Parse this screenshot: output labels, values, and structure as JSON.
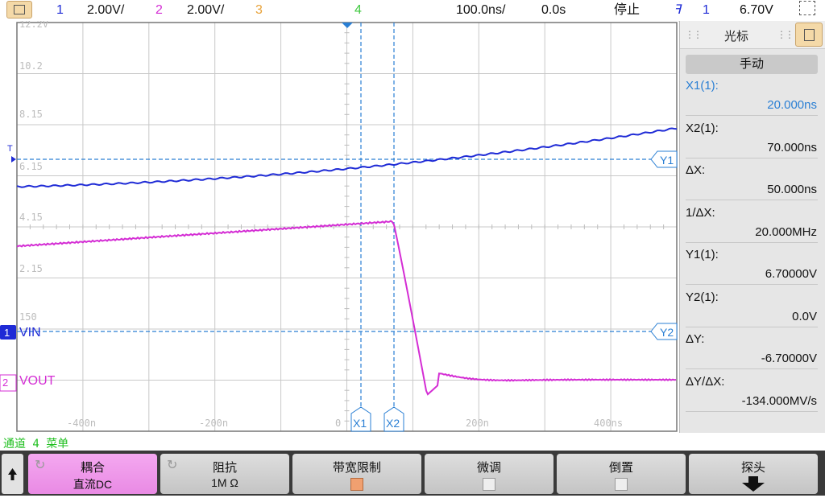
{
  "topbar": {
    "ch1_num": "1",
    "ch1_scale": "2.00V/",
    "ch2_num": "2",
    "ch2_scale": "2.00V/",
    "ch3_num": "3",
    "ch4_num": "4",
    "timebase": "100.0ns/",
    "delay": "0.0s",
    "run_state": "停止",
    "trigger_channel": "1",
    "trigger_level": "6.70V"
  },
  "colors": {
    "ch1": "#1f2bd6",
    "ch2": "#d42dd4",
    "ch3": "#e8a23a",
    "ch4": "#3ec83e",
    "cursor": "#2a7fd4",
    "grid": "#c8c8c8"
  },
  "screen": {
    "y_labels": [
      "12.2V",
      "10.2",
      "8.15",
      "6.15",
      "4.15",
      "2.15",
      "150"
    ],
    "x_labels": [
      "-400n",
      "-200n",
      "0",
      "200n",
      "400ns"
    ],
    "ch1_label": "VIN",
    "ch2_label": "VOUT",
    "ch1_marker": "1",
    "ch2_marker": "2",
    "trigger_marker": "T",
    "cursor_x1": "X1",
    "cursor_x2": "X2",
    "cursor_y1": "Y1",
    "cursor_y2": "Y2"
  },
  "cursor_panel": {
    "title": "光标",
    "mode": "手动",
    "rows": [
      {
        "label": "X1(1):",
        "value": "20.000ns",
        "highlight": true
      },
      {
        "label": "X2(1):",
        "value": "70.000ns",
        "highlight": false
      },
      {
        "label": "ΔX:",
        "value": "50.000ns",
        "highlight": false
      },
      {
        "label": "1/ΔX:",
        "value": "20.000MHz",
        "highlight": false
      },
      {
        "label": "Y1(1):",
        "value": "6.70000V",
        "highlight": false
      },
      {
        "label": "Y2(1):",
        "value": "0.0V",
        "highlight": false
      },
      {
        "label": "ΔY:",
        "value": "-6.70000V",
        "highlight": false
      },
      {
        "label": "ΔY/ΔX:",
        "value": "-134.000MV/s",
        "highlight": false
      }
    ]
  },
  "status": {
    "menu_title": "通道 4 菜单"
  },
  "softkeys": [
    {
      "l1": "耦合",
      "l2": "直流DC",
      "active": true
    },
    {
      "l1": "阻抗",
      "l2": "1M Ω",
      "active": false
    },
    {
      "l1": "带宽限制",
      "l2": "",
      "checkbox": "on"
    },
    {
      "l1": "微调",
      "l2": "",
      "checkbox": "off"
    },
    {
      "l1": "倒置",
      "l2": "",
      "checkbox": "off"
    },
    {
      "l1": "探头",
      "l2": "",
      "arrow": true
    }
  ]
}
